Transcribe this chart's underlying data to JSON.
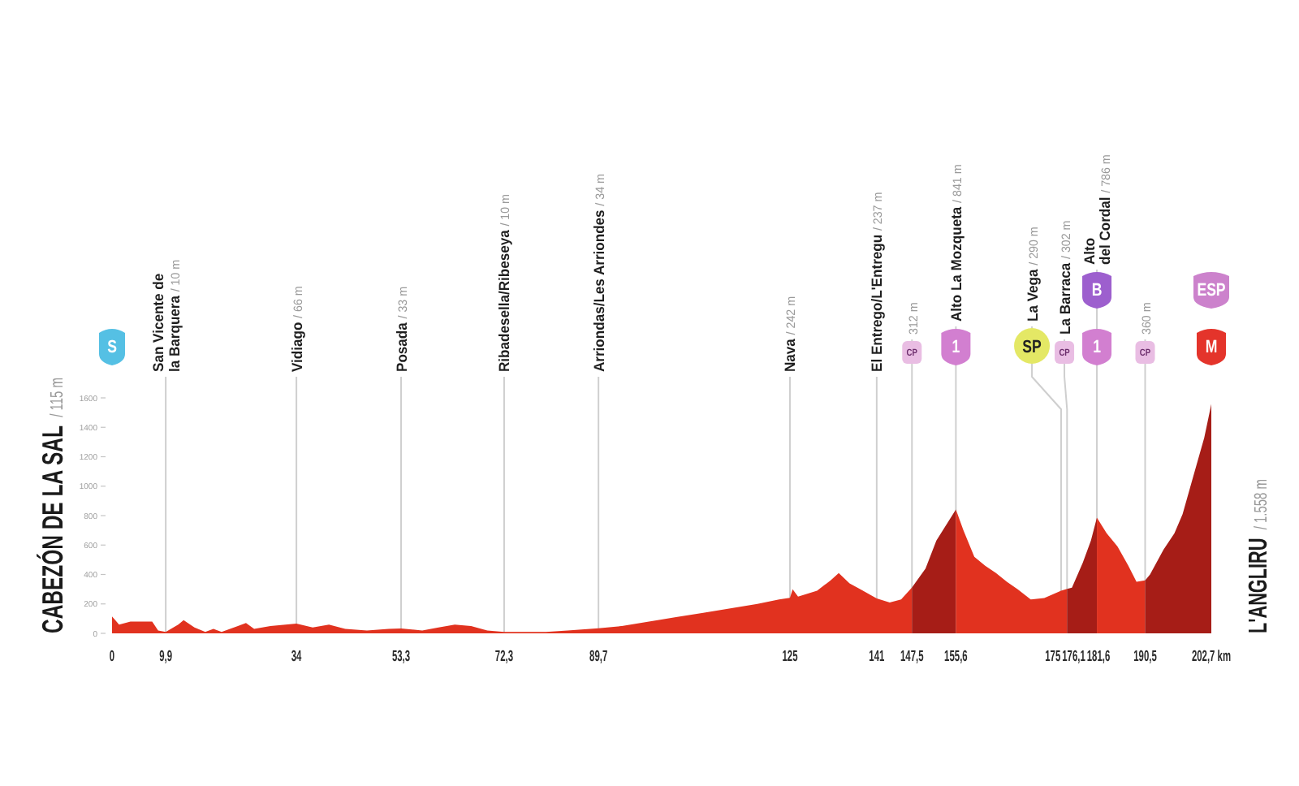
{
  "chart_data": {
    "type": "area",
    "ylabel": "CABEZÓN DE LA SAL / 115 m",
    "y2label": "L'ANGLIRU / 1.558 m",
    "xlim": [
      0,
      202.7
    ],
    "xticks": [
      0,
      {
        "value": 9.9,
        "label": "9,9"
      },
      34,
      {
        "value": 53.3,
        "label": "53,3"
      },
      {
        "value": 72.3,
        "label": "72,3"
      },
      {
        "value": 89.7,
        "label": "89,7"
      },
      125,
      141,
      {
        "value": 147.5,
        "label": "147,5"
      },
      {
        "value": 155.6,
        "label": "155,6"
      },
      175,
      {
        "value": 176.1,
        "label": "176,1"
      },
      {
        "value": 181.6,
        "label": "181,6"
      },
      {
        "value": 190.5,
        "label": "190,5"
      },
      {
        "value": 202.7,
        "label": "202,7 km"
      }
    ],
    "ylim": [
      0,
      1600
    ],
    "yticks": [
      0,
      200,
      400,
      600,
      800,
      1000,
      1200,
      1400,
      1600
    ],
    "series": [
      {
        "color": "#e1321f",
        "x": [
          0,
          1.3,
          3.4,
          7.4,
          8.5,
          9.9,
          12.2,
          13.2,
          15.2,
          17.2,
          18.7,
          20.2,
          23.2,
          24.7,
          26.2,
          29.2,
          34,
          37,
          40,
          43,
          47,
          51,
          53.3,
          57.2,
          60.2,
          63.2,
          66.2,
          69.2,
          72.3,
          74.2,
          80,
          84,
          89.7,
          94,
          99,
          104,
          109,
          114,
          119,
          123,
          125,
          125.5,
          126.5,
          130,
          132.5,
          134,
          136,
          138,
          141,
          143.4,
          145.5,
          147.5
        ],
        "values": [
          115,
          60,
          80,
          80,
          20,
          10,
          60,
          90,
          40,
          10,
          30,
          10,
          50,
          70,
          30,
          50,
          66,
          40,
          60,
          30,
          20,
          30,
          33,
          20,
          40,
          60,
          50,
          20,
          10,
          10,
          10,
          20,
          34,
          50,
          80,
          110,
          140,
          170,
          200,
          230,
          242,
          300,
          250,
          290,
          360,
          410,
          340,
          300,
          237,
          210,
          230,
          312
        ]
      },
      {
        "color": "#a61d17",
        "x": [
          147.5,
          150,
          152,
          155.6
        ],
        "values": [
          312,
          440,
          630,
          841
        ]
      },
      {
        "color": "#e1321f",
        "x": [
          155.6,
          157,
          159,
          161,
          163,
          165,
          167,
          169.4,
          171.9,
          175,
          176.1
        ],
        "values": [
          841,
          700,
          520,
          460,
          410,
          350,
          300,
          230,
          240,
          290,
          302
        ]
      },
      {
        "color": "#a61d17",
        "x": [
          176.1,
          177,
          179,
          180.5,
          181.6
        ],
        "values": [
          302,
          310,
          480,
          630,
          786
        ]
      },
      {
        "color": "#e1321f",
        "x": [
          181.6,
          183.4,
          185.4,
          187.4,
          188.9,
          190.5
        ],
        "values": [
          786,
          680,
          590,
          460,
          350,
          360
        ]
      },
      {
        "color": "#a61d17",
        "x": [
          190.5,
          191.4,
          193.9,
          195.9,
          197.4,
          199.4,
          201.4,
          202.7
        ],
        "values": [
          360,
          400,
          570,
          680,
          810,
          1070,
          1330,
          1558
        ]
      }
    ],
    "ref_lines": [
      {
        "axis": "x",
        "value": 9.9,
        "label": "San Vicente de\nla Barquera / 10 m"
      },
      {
        "axis": "x",
        "value": 34,
        "label": "Vidiago / 66 m"
      },
      {
        "axis": "x",
        "value": 53.3,
        "label": "Posada / 33 m"
      },
      {
        "axis": "x",
        "value": 72.3,
        "label": "Ribadesella/Ribeseya / 10 m"
      },
      {
        "axis": "x",
        "value": 89.7,
        "label": "Arriondas/Les Arriondes / 34 m"
      },
      {
        "axis": "x",
        "value": 125,
        "label": "Nava / 242 m"
      },
      {
        "axis": "x",
        "value": 141,
        "label": "El Entrego/L'Entregu / 237 m"
      },
      {
        "axis": "x",
        "value": 147.5,
        "label": "312 m"
      },
      {
        "axis": "x",
        "value": 155.6,
        "label": "Alto La Mozqueta / 841 m"
      },
      {
        "axis": "x",
        "value": 175,
        "label": "La Vega / 290 m"
      },
      {
        "axis": "x",
        "value": 176.1,
        "label": "La Barraca / 302 m"
      },
      {
        "axis": "x",
        "value": 181.6,
        "label": "Alto\ndel Cordal / 786 m"
      },
      {
        "axis": "x",
        "value": 190.5,
        "label": "360 m"
      }
    ],
    "annotations": [
      "S",
      "CP",
      "1",
      "SP",
      "CP",
      "1",
      "B",
      "CP",
      "M",
      "ESP"
    ]
  }
}
